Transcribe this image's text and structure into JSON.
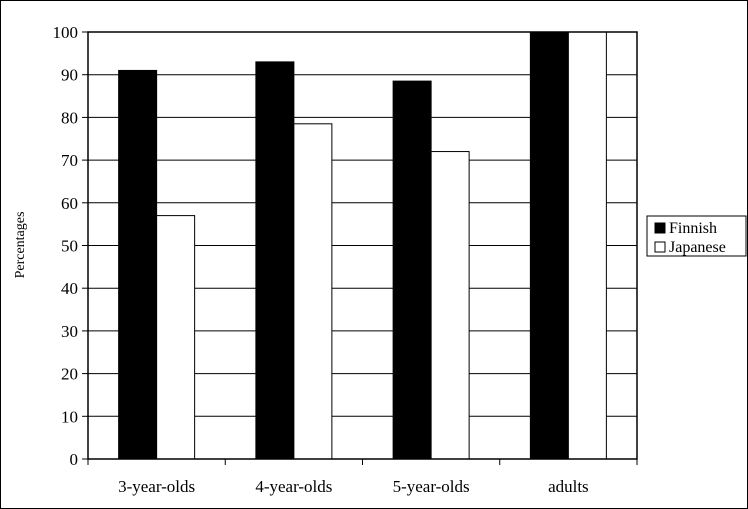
{
  "chart_data": {
    "type": "bar",
    "categories": [
      "3-year-olds",
      "4-year-olds",
      "5-year-olds",
      "adults"
    ],
    "series": [
      {
        "name": "Finnish",
        "values": [
          91,
          93,
          88.5,
          100
        ],
        "color": "#000000"
      },
      {
        "name": "Japanese",
        "values": [
          57,
          78.5,
          72,
          100
        ],
        "color": "#ffffff"
      }
    ],
    "ylabel": "Percentages",
    "xlabel": "",
    "ylim": [
      0,
      100
    ],
    "yticks": [
      0,
      10,
      20,
      30,
      40,
      50,
      60,
      70,
      80,
      90,
      100
    ],
    "grid": true,
    "legend_position": "right"
  }
}
